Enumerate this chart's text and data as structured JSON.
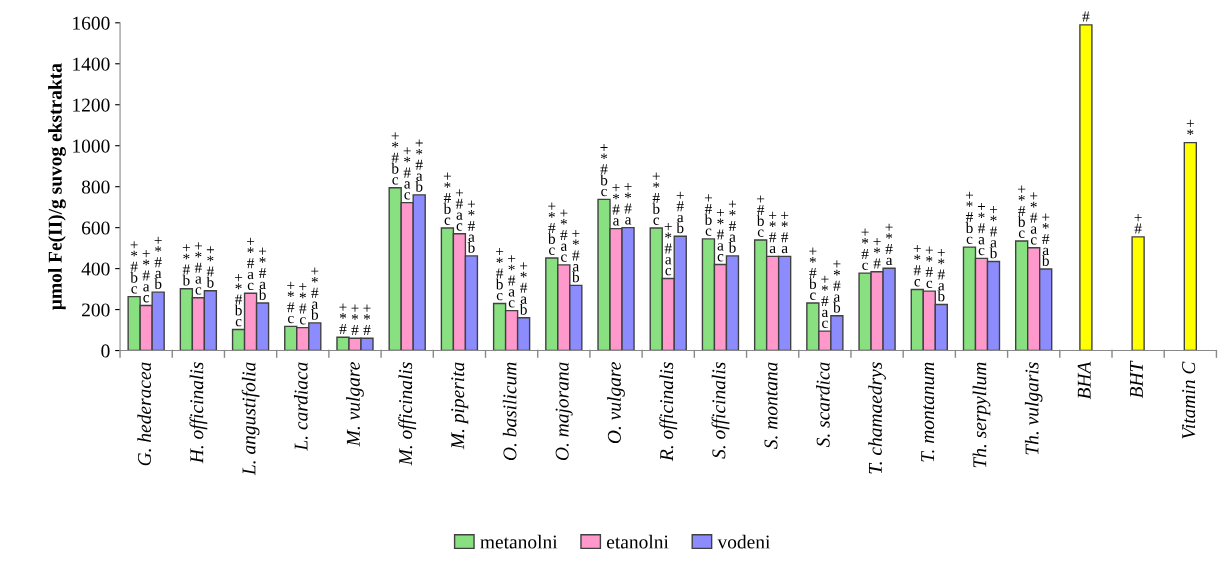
{
  "chart_data": {
    "type": "bar",
    "ylabel": "µmol Fe(II)/g suvog ekstrakta",
    "categories": [
      "G. hederacea",
      "H. officinalis",
      "L. angustifolia",
      "L. cardiaca",
      "M. vulgare",
      "M. officinalis",
      "M. piperita",
      "O. basilicum",
      "O. majorana",
      "O. vulgare",
      "R. officinalis",
      "S. officinalis",
      "S. montana",
      "S. scardica",
      "T. chamaedrys",
      "T. montanum",
      "Th. serpyllum",
      "Th. vulgaris",
      "BHA",
      "BHT",
      "Vitamin C"
    ],
    "series": [
      {
        "name": "metanolni",
        "color": "#88e080",
        "values": [
          263,
          302,
          103,
          118,
          65,
          795,
          598,
          230,
          452,
          738,
          598,
          545,
          540,
          232,
          378,
          298,
          505,
          535,
          null,
          null,
          null
        ],
        "value_labels": [
          "+\n*\n#\nb\nc",
          "+\n*\n#\nb",
          "+\n*\n#\nb\nc",
          "+\n*\n#\nc",
          "+\n*\n#",
          "+\n*\n#\nb\nc",
          "+\n*\n#\nb\nc",
          "+\n*\n#\nb\nc",
          "+\n*\n#\nb\nc",
          "+\n*\n#\nb\nc",
          "+\n*\n#\nb\nc",
          "+\n#\nb\nc",
          "+\n#\nb\nc",
          "+\n*\n#\nb\nc",
          "+\n*\n#\nc",
          "+\n*\n#\nc",
          "+\n*\n#\nb\nc",
          "+\n*\n#\nb\nc",
          null,
          null,
          null
        ]
      },
      {
        "name": "etanolni",
        "color": "#ff99cc",
        "values": [
          220,
          258,
          280,
          112,
          60,
          722,
          570,
          195,
          418,
          595,
          352,
          420,
          460,
          95,
          385,
          290,
          450,
          502,
          null,
          null,
          null
        ],
        "value_labels": [
          "+\n*\n#\na\nc",
          "+\n*\n#\na\nc",
          "+\n*\n#\na\nc",
          "+\n*\n#\nc",
          "+\n*\n#",
          "+\n*\n#\na\nc",
          "+\n#\na\nc",
          "+\n*\n#\na\nc",
          "+\n*\n#\na\nc",
          "+\n*\n#\na",
          "+\n*\n#\na\nc",
          "+\n*\n#\na\nc",
          "+\n*\n#\na",
          "+\n*\n#\na\nc",
          "+\n*\n#",
          "+\n*\n#\nc",
          "+\n*\n#\na\nc",
          "+\n*\n#\na\nc",
          null,
          null,
          null
        ]
      },
      {
        "name": "vodeni",
        "color": "#8c8cff",
        "values": [
          285,
          292,
          232,
          135,
          60,
          760,
          462,
          160,
          318,
          600,
          558,
          462,
          460,
          170,
          402,
          225,
          435,
          398,
          null,
          null,
          null
        ],
        "value_labels": [
          "+\n*\n#\na\nb",
          "+\n*\n#\nb",
          "+\n*\n#\na\nb",
          "+\n*\n#\na\nb",
          "+\n*\n#",
          "+\n*\n#\na\nb",
          "+\n*\n#\na\nb",
          "+\n*\n#\na\nb",
          "+\n*\n#\na\nb",
          "+\n*\n#\na",
          "+\n#\na\nb",
          "+\n*\n#\na\nb",
          "+\n*\n#\na",
          "+\n*\n#\na\nb",
          "+\n*\n#\na",
          "+\n*\n#\na\nb",
          "+\n*\n#\na\nb",
          "+\n*\n#\na\nb",
          null,
          null,
          null
        ]
      },
      {
        "color": "#ffff00",
        "values": [
          null,
          null,
          null,
          null,
          null,
          null,
          null,
          null,
          null,
          null,
          null,
          null,
          null,
          null,
          null,
          null,
          null,
          null,
          1590,
          555,
          1015
        ],
        "value_labels": [
          null,
          null,
          null,
          null,
          null,
          null,
          null,
          null,
          null,
          null,
          null,
          null,
          null,
          null,
          null,
          null,
          null,
          null,
          "#",
          "+\n#",
          "+\n*"
        ]
      }
    ],
    "ylim": [
      0,
      1600
    ],
    "yticks": [
      0,
      200,
      400,
      600,
      800,
      1000,
      1200,
      1400,
      1600
    ],
    "grid": false,
    "legend": "bottom"
  }
}
